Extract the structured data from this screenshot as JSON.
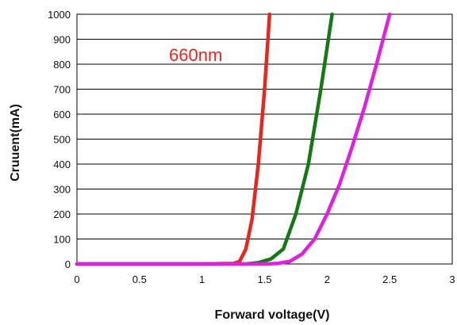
{
  "chart_data": {
    "type": "line",
    "title": "",
    "xlabel": "Forward voltage(V)",
    "ylabel": "Cruuent(mA)",
    "xlim": [
      0,
      3
    ],
    "ylim": [
      0,
      1000
    ],
    "xticks": [
      "0",
      "0.5",
      "1",
      "1.5",
      "2",
      "2.5",
      "3"
    ],
    "yticks": [
      "0",
      "100",
      "200",
      "300",
      "400",
      "500",
      "600",
      "700",
      "800",
      "900",
      "1000"
    ],
    "grid": "horizontal",
    "annotations": [
      {
        "text": "660nm",
        "color": "#e8261d"
      }
    ],
    "series": [
      {
        "color": "#e8261d",
        "points": [
          [
            0,
            0
          ],
          [
            1.0,
            0
          ],
          [
            1.25,
            2
          ],
          [
            1.3,
            10
          ],
          [
            1.35,
            60
          ],
          [
            1.4,
            180
          ],
          [
            1.45,
            400
          ],
          [
            1.5,
            700
          ],
          [
            1.54,
            1000
          ]
        ]
      },
      {
        "color": "#137a13",
        "points": [
          [
            0,
            0
          ],
          [
            1.35,
            0
          ],
          [
            1.45,
            5
          ],
          [
            1.55,
            20
          ],
          [
            1.65,
            60
          ],
          [
            1.75,
            200
          ],
          [
            1.85,
            400
          ],
          [
            1.95,
            700
          ],
          [
            2.04,
            1000
          ]
        ]
      },
      {
        "color": "#e020e0",
        "points": [
          [
            0,
            0
          ],
          [
            1.5,
            0
          ],
          [
            1.6,
            2
          ],
          [
            1.7,
            10
          ],
          [
            1.8,
            40
          ],
          [
            1.9,
            100
          ],
          [
            2.0,
            200
          ],
          [
            2.1,
            320
          ],
          [
            2.2,
            470
          ],
          [
            2.3,
            630
          ],
          [
            2.4,
            810
          ],
          [
            2.5,
            1000
          ]
        ]
      }
    ]
  }
}
